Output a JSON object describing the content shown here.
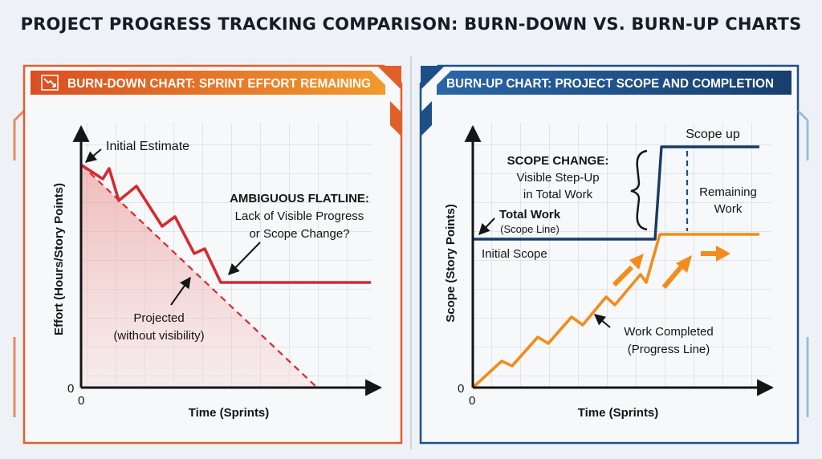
{
  "main_title": "PROJECT PROGRESS TRACKING COMPARISON: BURN-DOWN VS. BURN-UP CHARTS",
  "colors": {
    "burndown_accent": "#e0602a",
    "burnup_accent": "#1d4f86",
    "burndown_line": "#d52b2f",
    "scope_line": "#1b3a63",
    "progress_line": "#f28c1c"
  },
  "burndown": {
    "header": "BURN-DOWN CHART: SPRINT EFFORT REMAINING",
    "header_icon": "chart-down-icon",
    "y_axis_label": "Effort (Hours/Story Points)",
    "x_axis_label": "Time (Sprints)",
    "y_zero": "0",
    "x_zero": "0",
    "initial_estimate": "Initial Estimate",
    "flatline_title": "AMBIGUOUS FLATLINE:",
    "flatline_line1": "Lack of Visible Progress",
    "flatline_line2": "or Scope Change?",
    "projected_line1": "Projected",
    "projected_line2": "(without visibility)"
  },
  "burnup": {
    "header": "BURN-UP CHART: PROJECT SCOPE AND COMPLETION",
    "y_axis_label": "Scope (Story Points)",
    "x_axis_label": "Time (Sprints)",
    "y_zero": "0",
    "x_zero": "0",
    "scope_up": "Scope up",
    "scope_change_title": "SCOPE CHANGE:",
    "scope_change_line1": "Visible Step-Up",
    "scope_change_line2": "in Total Work",
    "total_work": "Total Work",
    "scope_line_label": "(Scope Line)",
    "initial_scope": "Initial Scope",
    "remaining_line1": "Remaining",
    "remaining_line2": "Work",
    "work_completed": "Work Completed",
    "progress_line_label": "(Progress Line)"
  }
}
